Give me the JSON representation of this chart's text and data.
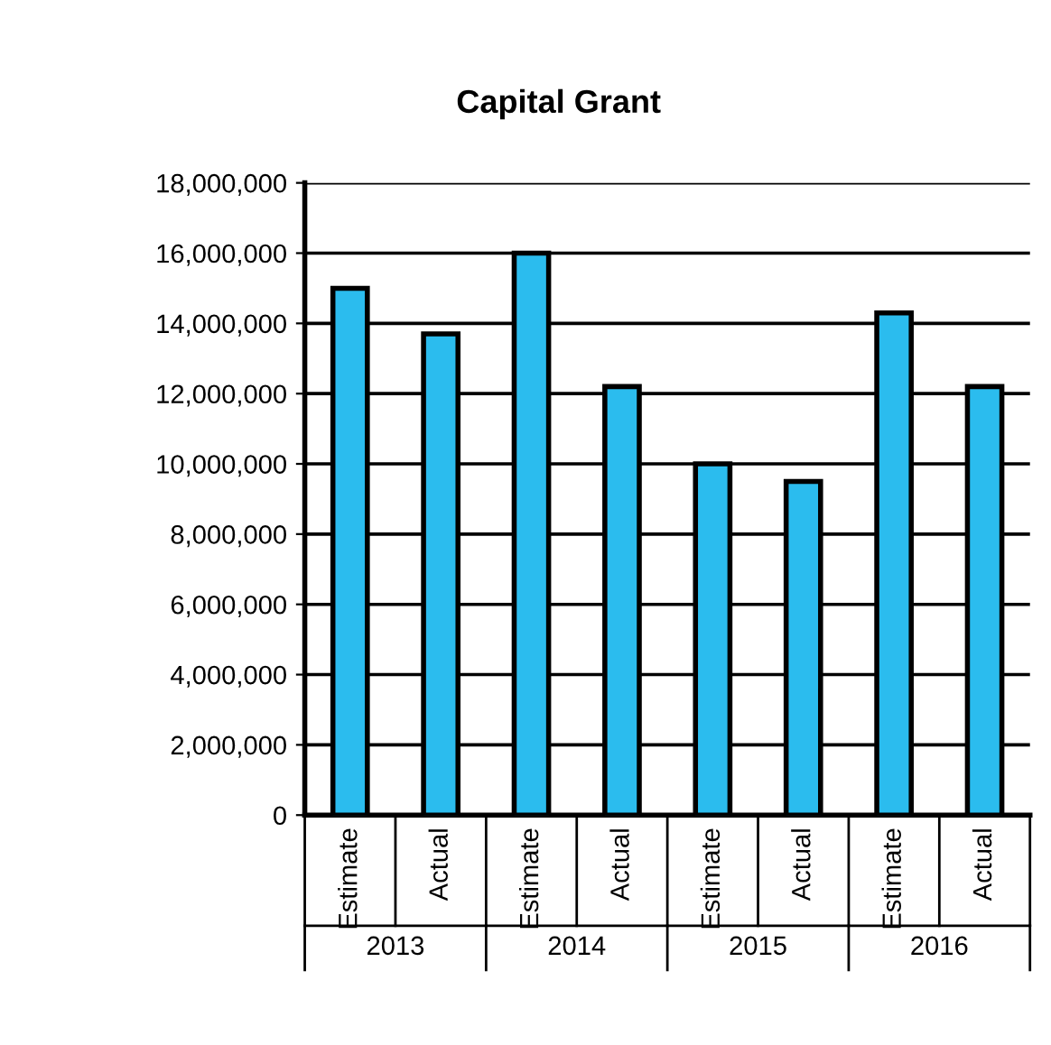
{
  "chart_data": {
    "type": "bar",
    "title": "Capital Grant",
    "categories": [
      "Estimate",
      "Actual",
      "Estimate",
      "Actual",
      "Estimate",
      "Actual",
      "Estimate",
      "Actual"
    ],
    "values": [
      15000000,
      13700000,
      16000000,
      12200000,
      10000000,
      9500000,
      14300000,
      12200000
    ],
    "color": "#2bbcee",
    "ylim": [
      0,
      18000000
    ],
    "yticks": [
      {
        "value": 0,
        "label": "0"
      },
      {
        "value": 2000000,
        "label": "2,000,000"
      },
      {
        "value": 4000000,
        "label": "4,000,000"
      },
      {
        "value": 6000000,
        "label": "6,000,000"
      },
      {
        "value": 8000000,
        "label": "8,000,000"
      },
      {
        "value": 10000000,
        "label": "10,000,000"
      },
      {
        "value": 12000000,
        "label": "12,000,000"
      },
      {
        "value": 14000000,
        "label": "14,000,000"
      },
      {
        "value": 16000000,
        "label": "16,000,000"
      },
      {
        "value": 18000000,
        "label": "18,000,000"
      }
    ],
    "annotations": [
      "2013",
      "2014",
      "2015",
      "2016"
    ],
    "grid": "y",
    "legend": false
  }
}
